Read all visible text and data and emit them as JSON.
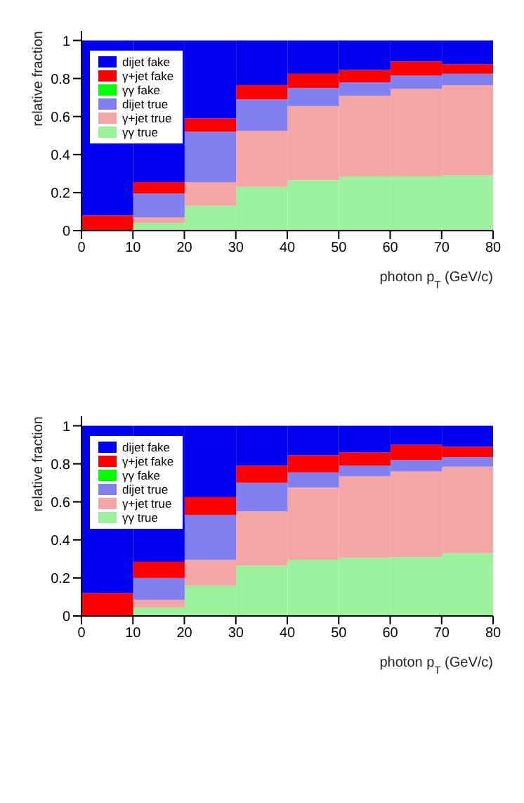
{
  "chart_data": [
    {
      "type": "bar",
      "stacked": true,
      "ylabel": "relative fraction",
      "xlabel": "photon p$_{T}$ (GeV/c)",
      "x": [
        5,
        15,
        25,
        35,
        45,
        55,
        65,
        75
      ],
      "xlim": [
        0,
        80
      ],
      "xticks": [
        0,
        10,
        20,
        30,
        40,
        50,
        60,
        70,
        80
      ],
      "ylim": [
        0,
        1.05
      ],
      "yticks": [
        0,
        0.2,
        0.4,
        0.6,
        0.8,
        1
      ],
      "legend": "top left",
      "series": [
        {
          "name": "γγ true",
          "color": "#9cf29c",
          "values": [
            0,
            0.04,
            0.13,
            0.23,
            0.265,
            0.285,
            0.285,
            0.29
          ]
        },
        {
          "name": "γ+jet true",
          "color": "#f4a6a6",
          "values": [
            0,
            0.03,
            0.125,
            0.295,
            0.39,
            0.425,
            0.46,
            0.475
          ]
        },
        {
          "name": "dijet true",
          "color": "#8080f0",
          "values": [
            0,
            0.125,
            0.265,
            0.165,
            0.095,
            0.07,
            0.07,
            0.06
          ]
        },
        {
          "name": "γγ fake",
          "color": "#00ff00",
          "values": [
            0,
            0,
            0,
            0,
            0,
            0,
            0,
            0
          ]
        },
        {
          "name": "γ+jet fake",
          "color": "#ff0000",
          "values": [
            0.08,
            0.06,
            0.07,
            0.075,
            0.075,
            0.065,
            0.075,
            0.05
          ]
        },
        {
          "name": "dijet fake",
          "color": "#0000f0",
          "values": [
            0.92,
            0.745,
            0.41,
            0.235,
            0.175,
            0.155,
            0.11,
            0.125
          ]
        }
      ]
    },
    {
      "type": "bar",
      "stacked": true,
      "ylabel": "relative fraction",
      "xlabel": "photon p$_{T}$ (GeV/c)",
      "x": [
        5,
        15,
        25,
        35,
        45,
        55,
        65,
        75
      ],
      "xlim": [
        0,
        80
      ],
      "xticks": [
        0,
        10,
        20,
        30,
        40,
        50,
        60,
        70,
        80
      ],
      "ylim": [
        0,
        1.05
      ],
      "yticks": [
        0,
        0.2,
        0.4,
        0.6,
        0.8,
        1
      ],
      "legend": "top left",
      "series": [
        {
          "name": "γγ true",
          "color": "#9cf29c",
          "values": [
            0,
            0.045,
            0.16,
            0.265,
            0.295,
            0.305,
            0.31,
            0.33
          ]
        },
        {
          "name": "γ+jet true",
          "color": "#f4a6a6",
          "values": [
            0,
            0.04,
            0.135,
            0.285,
            0.38,
            0.43,
            0.45,
            0.455
          ]
        },
        {
          "name": "dijet true",
          "color": "#8080f0",
          "values": [
            0,
            0.115,
            0.235,
            0.15,
            0.08,
            0.055,
            0.06,
            0.05
          ]
        },
        {
          "name": "γγ fake",
          "color": "#00ff00",
          "values": [
            0,
            0,
            0,
            0,
            0,
            0,
            0,
            0
          ]
        },
        {
          "name": "γ+jet fake",
          "color": "#ff0000",
          "values": [
            0.12,
            0.085,
            0.095,
            0.09,
            0.09,
            0.07,
            0.08,
            0.055
          ]
        },
        {
          "name": "dijet fake",
          "color": "#0000f0",
          "values": [
            0.88,
            0.715,
            0.375,
            0.21,
            0.155,
            0.14,
            0.1,
            0.11
          ]
        }
      ]
    }
  ]
}
